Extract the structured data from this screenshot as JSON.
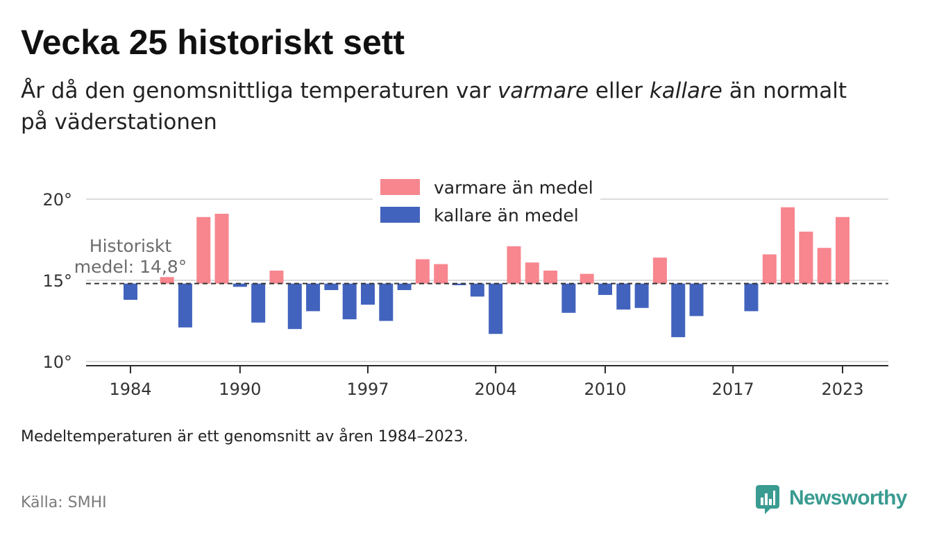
{
  "chart_data": {
    "type": "bar",
    "title": "Vecka 25 historiskt sett",
    "subtitle": [
      {
        "text": "År då den genomsnittliga temperaturen var ",
        "italic": false
      },
      {
        "text": "varmare",
        "italic": true
      },
      {
        "text": " eller ",
        "italic": false
      },
      {
        "text": "kallare",
        "italic": true
      },
      {
        "text": " än normalt",
        "italic": false
      },
      {
        "text": "på väderstationen",
        "italic": false
      }
    ],
    "categories": [
      1984,
      1985,
      1986,
      1987,
      1988,
      1989,
      1990,
      1991,
      1992,
      1993,
      1994,
      1995,
      1996,
      1997,
      1998,
      1999,
      2000,
      2001,
      2002,
      2003,
      2004,
      2005,
      2006,
      2007,
      2008,
      2009,
      2010,
      2011,
      2012,
      2013,
      2014,
      2015,
      2016,
      2017,
      2018,
      2019,
      2020,
      2021,
      2022,
      2023
    ],
    "values": [
      13.8,
      null,
      15.2,
      12.1,
      18.9,
      19.1,
      14.6,
      12.4,
      15.6,
      12.0,
      13.1,
      14.4,
      12.6,
      13.5,
      12.5,
      14.4,
      16.3,
      16.0,
      14.7,
      14.0,
      11.7,
      17.1,
      16.1,
      15.6,
      13.0,
      15.4,
      14.1,
      13.2,
      13.3,
      16.4,
      11.5,
      12.8,
      null,
      null,
      13.1,
      16.6,
      19.5,
      18.0,
      17.0,
      18.9
    ],
    "baseline": 14.8,
    "ylim": [
      10,
      20
    ],
    "y_ticks": [
      {
        "value": 20,
        "label": "20°"
      },
      {
        "value": 15,
        "label": "15°"
      },
      {
        "value": 10,
        "label": "10°"
      }
    ],
    "x_ticks": [
      {
        "value": 1984,
        "label": "1984"
      },
      {
        "value": 1990,
        "label": "1990"
      },
      {
        "value": 1997,
        "label": "1997"
      },
      {
        "value": 2004,
        "label": "2004"
      },
      {
        "value": 2010,
        "label": "2010"
      },
      {
        "value": 2017,
        "label": "2017"
      },
      {
        "value": 2023,
        "label": "2023"
      }
    ],
    "grid": "horizontal",
    "legend": [
      {
        "label": "varmare än medel",
        "color": "#f7868f"
      },
      {
        "label": "kallare än medel",
        "color": "#4263bd"
      }
    ],
    "legend_position": "top-center",
    "annotation": {
      "lines": [
        "Historiskt",
        "medel: 14,8°"
      ]
    }
  },
  "footnote": "Medeltemperaturen är ett genomsnitt av åren 1984–2023.",
  "source": "Källa: SMHI",
  "brand": {
    "name": "Newsworthy",
    "color": "#3a9b90",
    "icon": "chart-bubble-icon"
  }
}
